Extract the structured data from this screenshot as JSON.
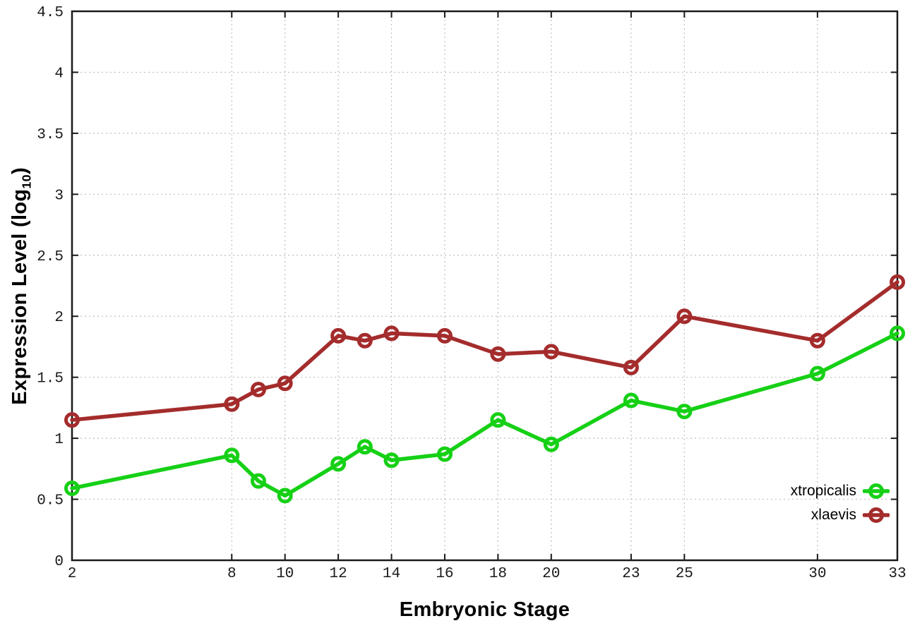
{
  "labels": {
    "xlabel": "Embryonic Stage",
    "ylabel_prefix": "Expression Level (log",
    "ylabel_sub": "10",
    "ylabel_suffix": ")"
  },
  "chart_data": {
    "type": "line",
    "title": "",
    "xlabel": "Embryonic Stage",
    "ylabel": "Expression Level (log10)",
    "x": [
      2,
      8,
      9,
      10,
      12,
      13,
      14,
      16,
      18,
      20,
      23,
      25,
      30,
      33
    ],
    "series": [
      {
        "name": "xtropicalis",
        "color": "#16d016",
        "marker": "open-circle",
        "values": [
          0.59,
          0.86,
          0.65,
          0.53,
          0.79,
          0.93,
          0.82,
          0.87,
          1.15,
          0.95,
          1.31,
          1.22,
          1.53,
          1.86
        ]
      },
      {
        "name": "xlaevis",
        "color": "#a42c2c",
        "marker": "open-circle",
        "values": [
          1.15,
          1.28,
          1.4,
          1.45,
          1.84,
          1.8,
          1.86,
          1.84,
          1.69,
          1.71,
          1.58,
          2.0,
          1.8,
          2.28
        ]
      }
    ],
    "xlim": [
      2,
      33
    ],
    "ylim": [
      0,
      4.5
    ],
    "xticks": [
      2,
      8,
      10,
      12,
      14,
      16,
      18,
      20,
      23,
      25,
      30,
      33
    ],
    "xtick_labels": [
      "2",
      "8",
      "10",
      "12",
      "14",
      "16",
      "18",
      "20",
      "23",
      "25",
      "30",
      "33"
    ],
    "yticks": [
      0,
      0.5,
      1,
      1.5,
      2,
      2.5,
      3,
      3.5,
      4,
      4.5
    ],
    "ytick_labels": [
      "0",
      "0.5",
      "1",
      "1.5",
      "2",
      "2.5",
      "3",
      "3.5",
      "4",
      "4.5"
    ],
    "grid": true,
    "legend_position": "inside-bottom-right",
    "colors": {
      "grid": "#bfbfbf",
      "axis": "#1a1a1a",
      "tick_text": "#1a1a1a"
    }
  }
}
